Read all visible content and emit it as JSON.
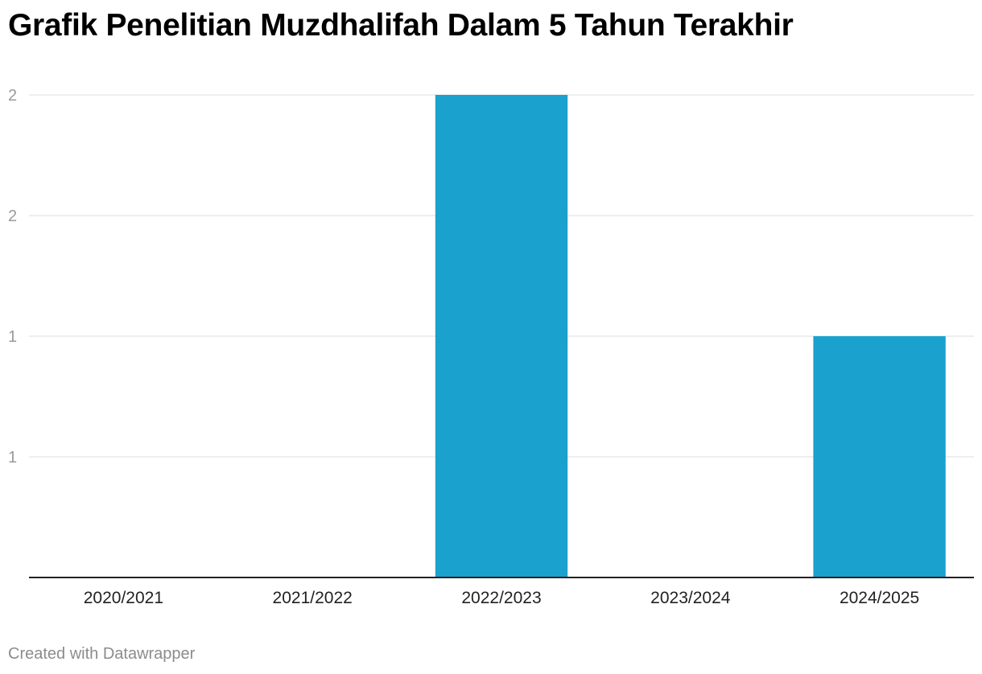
{
  "chart_data": {
    "type": "bar",
    "title": "Grafik Penelitian Muzdhalifah Dalam 5 Tahun Terakhir",
    "categories": [
      "2020/2021",
      "2021/2022",
      "2022/2023",
      "2023/2024",
      "2024/2025"
    ],
    "values": [
      0,
      0,
      2,
      0,
      1
    ],
    "ylim": [
      0,
      2
    ],
    "yticks": [
      0.5,
      1,
      1.5,
      2
    ],
    "ytick_labels": [
      "1",
      "1",
      "2",
      "2"
    ],
    "xlabel": "",
    "ylabel": "",
    "grid": true,
    "bar_color": "#1aa1ce"
  },
  "footer": {
    "credit": "Created with Datawrapper"
  }
}
